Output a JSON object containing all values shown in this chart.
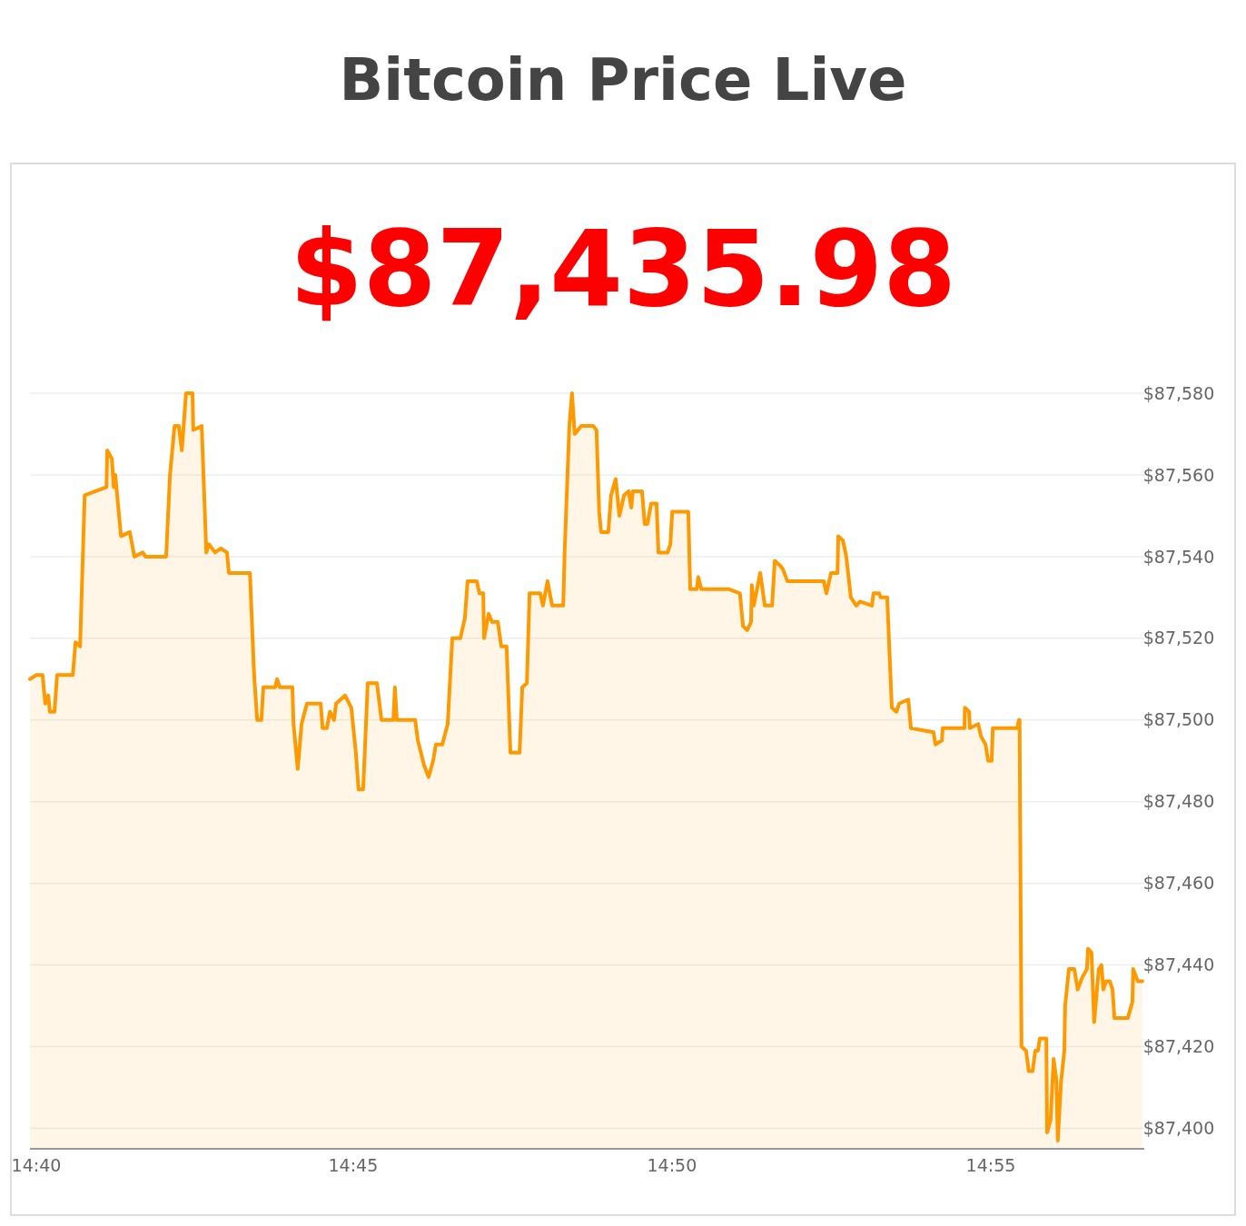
{
  "chart_data": {
    "type": "area",
    "title": "Bitcoin Price Live",
    "subtitle": "$87,435.98",
    "xlim": [
      14.6655,
      14.9568
    ],
    "xticks": [
      {
        "value": 14.66667,
        "label": "14:40"
      },
      {
        "value": 14.75,
        "label": "14:45"
      },
      {
        "value": 14.83333,
        "label": "14:50"
      },
      {
        "value": 14.91667,
        "label": "14:55"
      }
    ],
    "ylim": [
      87395,
      87580
    ],
    "yticks": [
      {
        "value": 87400,
        "label": "$87,400"
      },
      {
        "value": 87420,
        "label": "$87,420"
      },
      {
        "value": 87440,
        "label": "$87,440"
      },
      {
        "value": 87460,
        "label": "$87,460"
      },
      {
        "value": 87480,
        "label": "$87,480"
      },
      {
        "value": 87500,
        "label": "$87,500"
      },
      {
        "value": 87520,
        "label": "$87,520"
      },
      {
        "value": 87540,
        "label": "$87,540"
      },
      {
        "value": 87560,
        "label": "$87,560"
      },
      {
        "value": 87580,
        "label": "$87,580"
      }
    ],
    "grid": "y",
    "series": [
      {
        "color": "#ff9900",
        "x": [
          14.6655,
          14.6672,
          14.6688,
          14.6695,
          14.6703,
          14.6707,
          14.6719,
          14.6726,
          14.6767,
          14.6774,
          14.6786,
          14.6798,
          14.6855,
          14.6857,
          14.6869,
          14.6874,
          14.6878,
          14.6893,
          14.6916,
          14.6928,
          14.695,
          14.6957,
          14.7011,
          14.7021,
          14.7033,
          14.7044,
          14.7052,
          14.7063,
          14.708,
          14.7082,
          14.7104,
          14.7116,
          14.7123,
          14.7139,
          14.7154,
          14.717,
          14.7175,
          14.723,
          14.7241,
          14.7249,
          14.726,
          14.7265,
          14.7296,
          14.7301,
          14.7308,
          14.7341,
          14.7344,
          14.7355,
          14.7365,
          14.7379,
          14.7415,
          14.742,
          14.7431,
          14.7439,
          14.745,
          14.7455,
          14.7479,
          14.7495,
          14.7507,
          14.7514,
          14.7526,
          14.7538,
          14.7562,
          14.7574,
          14.7605,
          14.7609,
          14.7614,
          14.7662,
          14.7669,
          14.7685,
          14.7697,
          14.7709,
          14.7716,
          14.7733,
          14.7747,
          14.7759,
          14.778,
          14.7792,
          14.7799,
          14.7823,
          14.783,
          14.784,
          14.7842,
          14.7854,
          14.7863,
          14.7878,
          14.7887,
          14.7901,
          14.7911,
          14.7935,
          14.7942,
          14.7954,
          14.7961,
          14.7989,
          14.7996,
          14.8008,
          14.802,
          14.8049,
          14.8053,
          14.8065,
          14.8072,
          14.8079,
          14.8096,
          14.8127,
          14.8136,
          14.8143,
          14.8148,
          14.8167,
          14.8174,
          14.8186,
          14.8196,
          14.8208,
          14.822,
          14.8227,
          14.8231,
          14.8255,
          14.8262,
          14.8269,
          14.8279,
          14.8293,
          14.8298,
          14.8322,
          14.8329,
          14.8334,
          14.8376,
          14.8381,
          14.8398,
          14.8402,
          14.841,
          14.8483,
          14.8511,
          14.8519,
          14.853,
          14.854,
          14.8542,
          14.8547,
          14.8564,
          14.8576,
          14.8595,
          14.8602,
          14.8614,
          14.8623,
          14.8635,
          14.873,
          14.8737,
          14.8749,
          14.8766,
          14.8768,
          14.878,
          14.8789,
          14.8801,
          14.8815,
          14.8825,
          14.8856,
          14.886,
          14.8875,
          14.8879,
          14.8896,
          14.8908,
          14.892,
          14.8927,
          14.8951,
          14.8958,
          14.9017,
          14.9022,
          14.9039,
          14.9041,
          14.9098,
          14.9099,
          14.911,
          14.9112,
          14.9134,
          14.9141,
          14.9153,
          14.916,
          14.9169,
          14.9172,
          14.9236,
          14.924,
          14.9242,
          14.9247,
          14.9259,
          14.9266,
          14.9276,
          14.9283,
          14.929,
          14.9295,
          14.9312,
          14.9314,
          14.9323,
          14.9331,
          14.9338,
          14.9342,
          14.935,
          14.9359,
          14.9361,
          14.9371,
          14.9385,
          14.9394,
          14.9406,
          14.9418,
          14.9421,
          14.943,
          14.9437,
          14.9449,
          14.9456,
          14.9461,
          14.9468,
          14.9478,
          14.9485,
          14.949,
          14.9525,
          14.9537,
          14.9539,
          14.9551,
          14.9563
        ],
        "values": [
          87510,
          87511,
          87511,
          87504,
          87506,
          87502,
          87502,
          87511,
          87511,
          87519,
          87518,
          87555,
          87557,
          87566,
          87564,
          87557,
          87560,
          87545,
          87546,
          87540,
          87541,
          87540,
          87540,
          87560,
          87572,
          87572,
          87566,
          87580,
          87580,
          87571,
          87572,
          87541,
          87543,
          87541,
          87542,
          87541,
          87536,
          87536,
          87511,
          87500,
          87500,
          87508,
          87508,
          87510,
          87508,
          87508,
          87499,
          87488,
          87499,
          87504,
          87504,
          87498,
          87498,
          87502,
          87500,
          87504,
          87506,
          87503,
          87492,
          87483,
          87483,
          87509,
          87509,
          87500,
          87500,
          87508,
          87500,
          87500,
          87495,
          87489,
          87486,
          87490,
          87494,
          87494,
          87499,
          87520,
          87520,
          87525,
          87534,
          87534,
          87531,
          87531,
          87520,
          87526,
          87524,
          87524,
          87518,
          87518,
          87492,
          87492,
          87508,
          87509,
          87531,
          87531,
          87528,
          87534,
          87528,
          87528,
          87542,
          87572,
          87580,
          87570,
          87572,
          87572,
          87571,
          87551,
          87546,
          87546,
          87555,
          87559,
          87550,
          87555,
          87556,
          87552,
          87556,
          87556,
          87548,
          87548,
          87553,
          87553,
          87541,
          87541,
          87543,
          87551,
          87551,
          87532,
          87532,
          87535,
          87532,
          87532,
          87531,
          87523,
          87522,
          87524,
          87533,
          87528,
          87536,
          87528,
          87528,
          87539,
          87538,
          87537,
          87534,
          87534,
          87531,
          87536,
          87536,
          87545,
          87544,
          87540,
          87530,
          87528,
          87529,
          87528,
          87531,
          87531,
          87530,
          87530,
          87503,
          87502,
          87504,
          87505,
          87498,
          87497,
          87494,
          87495,
          87498,
          87498,
          87503,
          87502,
          87498,
          87499,
          87496,
          87494,
          87490,
          87490,
          87498,
          87498,
          87500,
          87500,
          87420,
          87419,
          87414,
          87414,
          87419,
          87419,
          87422,
          87422,
          87399,
          87402,
          87417,
          87412,
          87397,
          87411,
          87419,
          87430,
          87439,
          87439,
          87434,
          87437,
          87439,
          87444,
          87443,
          87426,
          87439,
          87440,
          87434,
          87436,
          87436,
          87434,
          87427,
          87427,
          87431,
          87439,
          87436,
          87436
        ]
      }
    ]
  }
}
